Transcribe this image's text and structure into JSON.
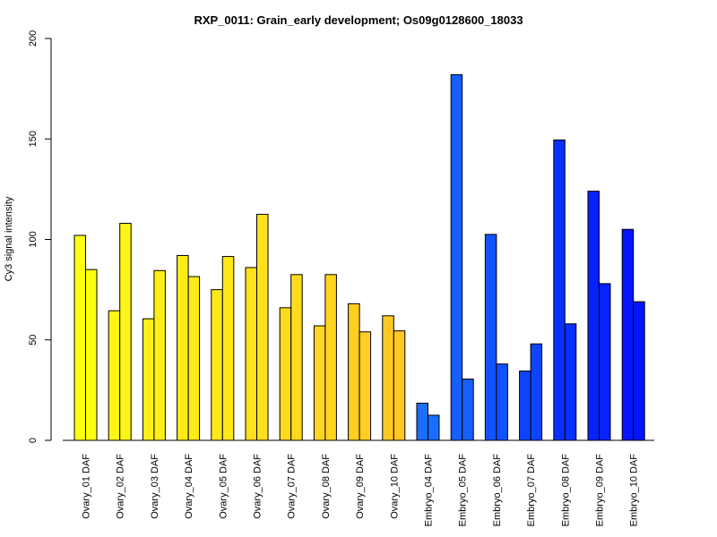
{
  "chart_data": {
    "type": "bar",
    "title": "RXP_0011: Grain_early development; Os09g0128600_18033",
    "xlabel": "",
    "ylabel": "Cy3 signal intensity",
    "ylim": [
      0,
      200
    ],
    "yticks": [
      0,
      50,
      100,
      150,
      200
    ],
    "grid": false,
    "categories": [
      "Ovary_01 DAF",
      "Ovary_02 DAF",
      "Ovary_03 DAF",
      "Ovary_04 DAF",
      "Ovary_05 DAF",
      "Ovary_06 DAF",
      "Ovary_07 DAF",
      "Ovary_08 DAF",
      "Ovary_09 DAF",
      "Ovary_10 DAF",
      "Embryo_04 DAF",
      "Embryo_05 DAF",
      "Embryo_06 DAF",
      "Embryo_07 DAF",
      "Embryo_08 DAF",
      "Embryo_09 DAF",
      "Embryo_10 DAF"
    ],
    "colors": [
      "#ffff11",
      "#fff514",
      "#ffef14",
      "#ffec17",
      "#ffe818",
      "#ffe01b",
      "#ffda1d",
      "#ffd51f",
      "#ffce20",
      "#ffc823",
      "#1a6dff",
      "#1560ff",
      "#1152ff",
      "#0d45ff",
      "#0a30ff",
      "#0622ff",
      "#0415ff"
    ],
    "series": [
      {
        "values": [
          102,
          64.5,
          60.5,
          92,
          75,
          86,
          66,
          57,
          68,
          62,
          18.5,
          182,
          102.5,
          34.5,
          149.5,
          124,
          105
        ]
      },
      {
        "values": [
          85,
          108,
          84.5,
          81.5,
          91.5,
          112.5,
          82.5,
          82.5,
          54,
          54.5,
          12.5,
          30.5,
          38,
          48,
          58,
          78,
          69
        ]
      }
    ]
  }
}
